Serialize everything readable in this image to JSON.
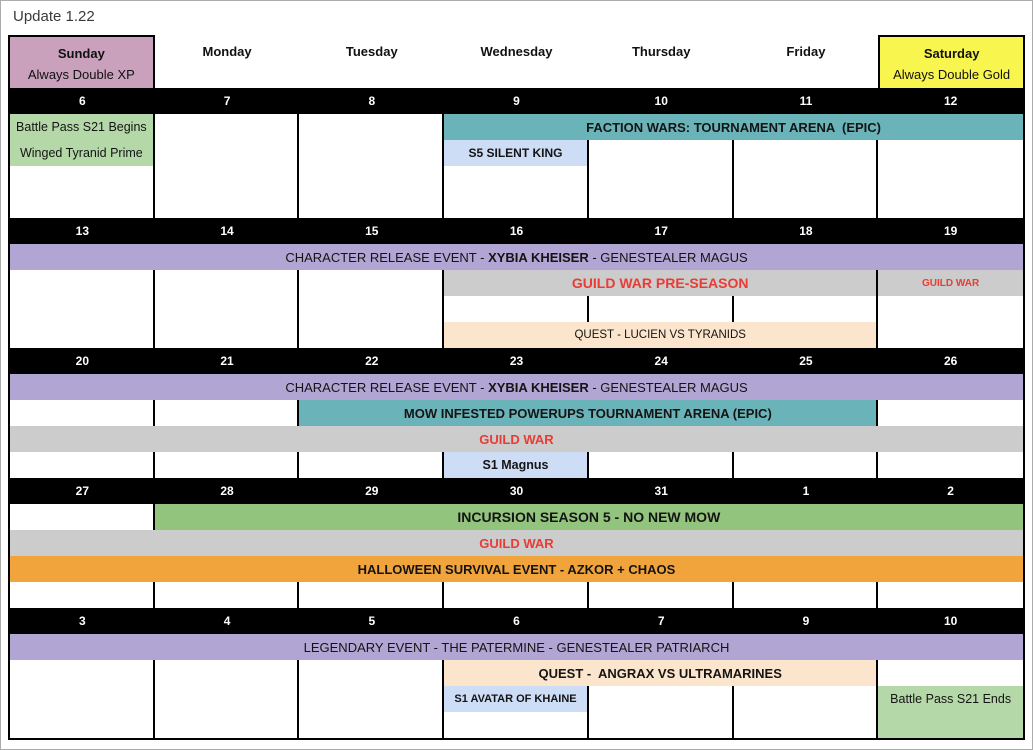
{
  "page": {
    "title": "Update 1.22"
  },
  "colors": {
    "pink": "#c9a1bd",
    "yellow": "#f8f64e",
    "green_light": "#b5d8a8",
    "green": "#93c47d",
    "teal": "#6ab4b9",
    "purple": "#b1a5d3",
    "gray": "#cccccc",
    "tan": "#fce5cd",
    "orange": "#f2a43c",
    "blue": "#cdddf6",
    "red": "#ea3b34"
  },
  "header": {
    "days": [
      {
        "label": "Sunday",
        "subtitle": "Always Double XP",
        "bg": "pink"
      },
      {
        "label": "Monday"
      },
      {
        "label": "Tuesday"
      },
      {
        "label": "Wednesday"
      },
      {
        "label": "Thursday"
      },
      {
        "label": "Friday"
      },
      {
        "label": "Saturday",
        "subtitle": "Always Double Gold",
        "bg": "yellow"
      }
    ]
  },
  "weeks": [
    {
      "dates": [
        "6",
        "7",
        "8",
        "9",
        "10",
        "11",
        "12"
      ],
      "rows": [
        [
          {
            "c": 1,
            "s": 1,
            "bg": "green_light",
            "t": "Battle Pass S21 Begins",
            "fs": 12.5,
            "n": "battle-pass-begins-event"
          },
          {
            "c": 4,
            "s": 4,
            "bg": "teal",
            "t": "FACTION WARS: TOURNAMENT ARENA  (EPIC)",
            "fs": 13,
            "b": 1,
            "n": "faction-wars-event"
          }
        ],
        [
          {
            "c": 1,
            "s": 1,
            "bg": "green_light",
            "t": "Winged Tyranid Prime",
            "fs": 12.5,
            "n": "winged-tyranid-prime-event"
          },
          {
            "c": 4,
            "s": 1,
            "bg": "blue",
            "t": "S5 SILENT KING",
            "fs": 12,
            "b": 1,
            "n": "s5-silent-king-event"
          }
        ],
        [],
        []
      ]
    },
    {
      "dates": [
        "13",
        "14",
        "15",
        "16",
        "17",
        "18",
        "19"
      ],
      "rows": [
        [
          {
            "c": 1,
            "s": 7,
            "bg": "purple",
            "fs": 13,
            "n": "character-release-event",
            "rich": [
              {
                "t": "CHARACTER RELEASE EVENT - "
              },
              {
                "t": "XYBIA KHEISER",
                "b": 1
              },
              {
                "t": " - GENESTEALER MAGUS"
              }
            ]
          }
        ],
        [
          {
            "c": 4,
            "s": 3,
            "bg": "gray",
            "t": "GUILD WAR PRE-SEASON",
            "fs": 14,
            "b": 1,
            "red": 1,
            "n": "guild-war-pre-season-event"
          },
          {
            "c": 7,
            "s": 1,
            "bg": "gray",
            "t": "GUILD WAR",
            "fs": 10,
            "b": 1,
            "red": 1,
            "n": "guild-war-event"
          }
        ],
        [],
        [
          {
            "c": 4,
            "s": 3,
            "bg": "tan",
            "t": "QUEST - LUCIEN VS TYRANIDS",
            "fs": 11.5,
            "n": "quest-lucien-event"
          }
        ]
      ]
    },
    {
      "dates": [
        "20",
        "21",
        "22",
        "23",
        "24",
        "25",
        "26"
      ],
      "rows": [
        [
          {
            "c": 1,
            "s": 7,
            "bg": "purple",
            "fs": 13,
            "n": "character-release-event",
            "rich": [
              {
                "t": "CHARACTER RELEASE EVENT - "
              },
              {
                "t": "XYBIA KHEISER",
                "b": 1
              },
              {
                "t": " - GENESTEALER MAGUS"
              }
            ]
          }
        ],
        [
          {
            "c": 3,
            "s": 4,
            "bg": "teal",
            "t": "MOW INFESTED POWERUPS TOURNAMENT ARENA (EPIC)",
            "fs": 13,
            "b": 1,
            "n": "mow-infested-powerups-event"
          }
        ],
        [
          {
            "c": 1,
            "s": 7,
            "bg": "gray",
            "t": "GUILD WAR",
            "fs": 13,
            "b": 1,
            "red": 1,
            "n": "guild-war-event"
          }
        ],
        [
          {
            "c": 4,
            "s": 1,
            "bg": "blue",
            "t": "S1 Magnus",
            "fs": 12.5,
            "b": 1,
            "n": "s1-magnus-event"
          }
        ]
      ]
    },
    {
      "dates": [
        "27",
        "28",
        "29",
        "30",
        "31",
        "1",
        "2"
      ],
      "rows": [
        [
          {
            "c": 2,
            "s": 6,
            "bg": "green",
            "t": "INCURSION SEASON 5 - NO NEW MOW",
            "fs": 14,
            "b": 1,
            "n": "incursion-season-5-event"
          }
        ],
        [
          {
            "c": 1,
            "s": 7,
            "bg": "gray",
            "t": "GUILD WAR",
            "fs": 13,
            "b": 1,
            "red": 1,
            "n": "guild-war-event"
          }
        ],
        [
          {
            "c": 1,
            "s": 7,
            "bg": "orange",
            "t": "HALLOWEEN SURVIVAL EVENT - AZKOR + CHAOS",
            "fs": 13,
            "b": 1,
            "n": "halloween-survival-event"
          }
        ],
        []
      ]
    },
    {
      "dates": [
        "3",
        "4",
        "5",
        "6",
        "7",
        "9",
        "10"
      ],
      "rows": [
        [
          {
            "c": 1,
            "s": 7,
            "bg": "purple",
            "t": "LEGENDARY EVENT - THE PATERMINE - GENESTEALER PATRIARCH",
            "fs": 13,
            "n": "legendary-event-patermine"
          }
        ],
        [
          {
            "c": 4,
            "s": 3,
            "bg": "tan",
            "t": "QUEST -  ANGRAX VS ULTRAMARINES",
            "fs": 13,
            "b": 1,
            "n": "quest-angrax-event"
          }
        ],
        [
          {
            "c": 4,
            "s": 1,
            "bg": "blue",
            "t": "S1 AVATAR OF KHAINE",
            "fs": 11,
            "b": 1,
            "n": "s1-avatar-of-khaine-event"
          },
          {
            "c": 7,
            "s": 1,
            "bg": "green_light",
            "t": "Battle Pass S21 Ends",
            "fs": 12.5,
            "n": "battle-pass-ends-event"
          }
        ],
        [
          {
            "c": 7,
            "s": 1,
            "bg": "green_light",
            "t": "",
            "n": "battle-pass-ends-continuation"
          }
        ]
      ]
    }
  ]
}
